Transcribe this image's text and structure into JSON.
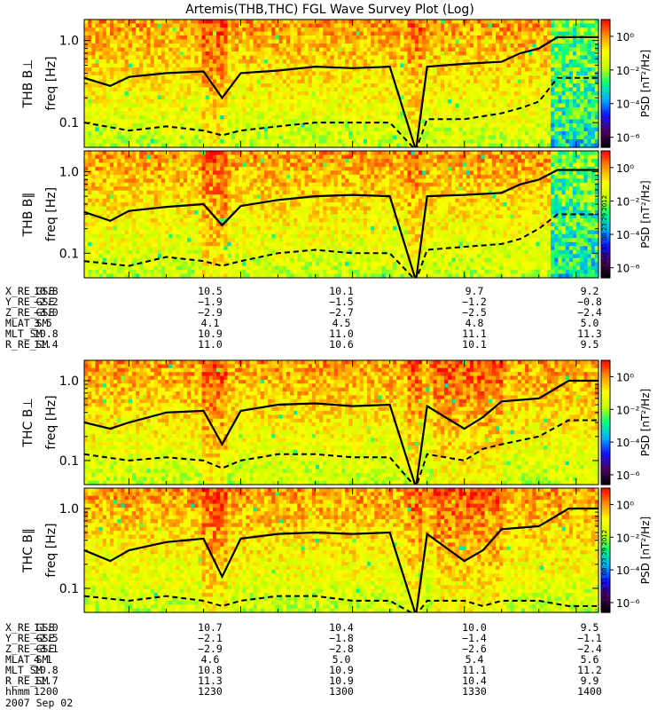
{
  "title": "Artemis(THB,THC) FGL Wave Survey Plot (Log)",
  "freq_label": "freq [Hz]",
  "y_ticks": [
    "1.0",
    "0.1"
  ],
  "colorbar": {
    "label": "PSD [nT²/Hz]",
    "ticks": [
      "10⁰",
      "10⁻²",
      "10⁻⁴",
      "10⁻⁶"
    ],
    "stamp": "Fri Aug 31 08:23:29 2012",
    "colors": [
      "#000000",
      "#500060",
      "#1010ff",
      "#00b0ff",
      "#00ff80",
      "#c8ff00",
      "#ffff00",
      "#ff9000",
      "#ff0000"
    ]
  },
  "date_label": "2007 Sep 02",
  "chart_data": [
    {
      "type": "heatmap",
      "panel": "THB B⊥",
      "ylabel": "THB B⊥",
      "yscale": "log",
      "ylim": [
        0.05,
        1.8
      ],
      "xlim": [
        "11:48",
        "14:06"
      ],
      "zlim": [
        1e-06,
        10
      ],
      "curves": [
        {
          "style": "solid",
          "x": [
            "11:48",
            "11:55",
            "12:00",
            "12:10",
            "12:20",
            "12:25",
            "12:30",
            "12:40",
            "12:50",
            "13:00",
            "13:10",
            "13:17",
            "13:20",
            "13:30",
            "13:40",
            "13:45",
            "13:50",
            "13:55",
            "14:06"
          ],
          "y": [
            0.35,
            0.28,
            0.36,
            0.4,
            0.42,
            0.2,
            0.4,
            0.43,
            0.48,
            0.46,
            0.48,
            0.0,
            0.48,
            0.52,
            0.55,
            0.7,
            0.8,
            1.1,
            1.1
          ]
        },
        {
          "style": "dashed",
          "x": [
            "11:48",
            "12:00",
            "12:10",
            "12:20",
            "12:25",
            "12:30",
            "12:40",
            "12:50",
            "13:00",
            "13:10",
            "13:17",
            "13:20",
            "13:30",
            "13:40",
            "13:45",
            "13:50",
            "13:55",
            "14:06"
          ],
          "y": [
            0.1,
            0.08,
            0.09,
            0.08,
            0.07,
            0.08,
            0.09,
            0.1,
            0.1,
            0.1,
            0.0,
            0.11,
            0.11,
            0.13,
            0.15,
            0.18,
            0.35,
            0.35
          ]
        }
      ]
    },
    {
      "type": "heatmap",
      "panel": "THB B∥",
      "ylabel": "THB B∥",
      "yscale": "log",
      "ylim": [
        0.05,
        1.8
      ],
      "xlim": [
        "11:48",
        "14:06"
      ],
      "zlim": [
        1e-06,
        10
      ],
      "curves": [
        {
          "style": "solid",
          "x": [
            "11:48",
            "11:55",
            "12:00",
            "12:10",
            "12:20",
            "12:25",
            "12:30",
            "12:40",
            "12:50",
            "13:00",
            "13:10",
            "13:17",
            "13:20",
            "13:30",
            "13:40",
            "13:45",
            "13:50",
            "13:55",
            "14:06"
          ],
          "y": [
            0.32,
            0.25,
            0.33,
            0.37,
            0.4,
            0.22,
            0.38,
            0.45,
            0.5,
            0.52,
            0.5,
            0.0,
            0.5,
            0.52,
            0.55,
            0.7,
            0.8,
            1.05,
            1.05
          ]
        },
        {
          "style": "dashed",
          "x": [
            "11:48",
            "12:00",
            "12:10",
            "12:20",
            "12:25",
            "12:30",
            "12:40",
            "12:50",
            "13:00",
            "13:10",
            "13:17",
            "13:20",
            "13:30",
            "13:40",
            "13:45",
            "13:50",
            "13:55",
            "14:06"
          ],
          "y": [
            0.08,
            0.07,
            0.09,
            0.08,
            0.07,
            0.08,
            0.1,
            0.11,
            0.1,
            0.1,
            0.0,
            0.11,
            0.12,
            0.13,
            0.15,
            0.2,
            0.3,
            0.3
          ]
        }
      ]
    },
    {
      "type": "heatmap",
      "panel": "THC B⊥",
      "ylabel": "THC B⊥",
      "yscale": "log",
      "ylim": [
        0.05,
        1.8
      ],
      "xlim": [
        "11:48",
        "14:06"
      ],
      "zlim": [
        1e-06,
        10
      ],
      "curves": [
        {
          "style": "solid",
          "x": [
            "11:48",
            "11:55",
            "12:00",
            "12:10",
            "12:20",
            "12:25",
            "12:30",
            "12:40",
            "12:50",
            "13:00",
            "13:10",
            "13:17",
            "13:20",
            "13:30",
            "13:35",
            "13:40",
            "13:50",
            "13:58",
            "14:06"
          ],
          "y": [
            0.3,
            0.25,
            0.3,
            0.4,
            0.42,
            0.16,
            0.42,
            0.5,
            0.52,
            0.48,
            0.5,
            0.0,
            0.48,
            0.25,
            0.35,
            0.55,
            0.6,
            1.0,
            1.0
          ]
        },
        {
          "style": "dashed",
          "x": [
            "11:48",
            "12:00",
            "12:10",
            "12:20",
            "12:25",
            "12:30",
            "12:40",
            "12:50",
            "13:00",
            "13:10",
            "13:17",
            "13:20",
            "13:30",
            "13:35",
            "13:40",
            "13:50",
            "13:58",
            "14:06"
          ],
          "y": [
            0.12,
            0.1,
            0.11,
            0.1,
            0.08,
            0.1,
            0.12,
            0.12,
            0.11,
            0.11,
            0.0,
            0.12,
            0.1,
            0.14,
            0.16,
            0.2,
            0.32,
            0.32
          ]
        }
      ]
    },
    {
      "type": "heatmap",
      "panel": "THC B∥",
      "ylabel": "THC B∥",
      "yscale": "log",
      "ylim": [
        0.05,
        1.8
      ],
      "xlim": [
        "11:48",
        "14:06"
      ],
      "zlim": [
        1e-06,
        10
      ],
      "curves": [
        {
          "style": "solid",
          "x": [
            "11:48",
            "11:55",
            "12:00",
            "12:10",
            "12:20",
            "12:25",
            "12:30",
            "12:40",
            "12:50",
            "13:00",
            "13:10",
            "13:17",
            "13:20",
            "13:30",
            "13:35",
            "13:40",
            "13:50",
            "13:58",
            "14:06"
          ],
          "y": [
            0.3,
            0.22,
            0.3,
            0.38,
            0.42,
            0.14,
            0.42,
            0.48,
            0.5,
            0.48,
            0.5,
            0.0,
            0.48,
            0.22,
            0.3,
            0.55,
            0.6,
            1.0,
            1.0
          ]
        },
        {
          "style": "dashed",
          "x": [
            "11:48",
            "12:00",
            "12:10",
            "12:20",
            "12:25",
            "12:30",
            "12:40",
            "12:50",
            "13:00",
            "13:10",
            "13:17",
            "13:20",
            "13:30",
            "13:35",
            "13:40",
            "13:50",
            "13:58",
            "14:06"
          ],
          "y": [
            0.08,
            0.07,
            0.08,
            0.07,
            0.06,
            0.07,
            0.08,
            0.08,
            0.07,
            0.07,
            0.0,
            0.07,
            0.07,
            0.06,
            0.07,
            0.07,
            0.06,
            0.06
          ]
        }
      ]
    }
  ],
  "ephemeris_top": {
    "rows": [
      {
        "name": "X_RE_GSE",
        "values": [
          "10.8",
          "10.5",
          "10.1",
          "9.7",
          "9.2"
        ]
      },
      {
        "name": "Y_RE_GSE",
        "values": [
          "-2.2",
          "-1.9",
          "-1.5",
          "-1.2",
          "-0.8"
        ]
      },
      {
        "name": "Z_RE_GSE",
        "values": [
          "-3.0",
          "-2.9",
          "-2.7",
          "-2.5",
          "-2.4"
        ]
      },
      {
        "name": "MLAT_SM",
        "values": [
          "3.5",
          "4.1",
          "4.5",
          "4.8",
          "5.0"
        ]
      },
      {
        "name": "MLT_SM",
        "values": [
          "10.8",
          "10.9",
          "11.0",
          "11.1",
          "11.3"
        ]
      },
      {
        "name": "R_RE_SM",
        "values": [
          "11.4",
          "11.0",
          "10.6",
          "10.1",
          "9.5"
        ]
      }
    ]
  },
  "ephemeris_bottom": {
    "rows": [
      {
        "name": "X_RE_GSE",
        "values": [
          "11.0",
          "10.7",
          "10.4",
          "10.0",
          "9.5"
        ]
      },
      {
        "name": "Y_RE_GSE",
        "values": [
          "-2.5",
          "-2.1",
          "-1.8",
          "-1.4",
          "-1.1"
        ]
      },
      {
        "name": "Z_RE_GSE",
        "values": [
          "-3.1",
          "-2.9",
          "-2.8",
          "-2.6",
          "-2.4"
        ]
      },
      {
        "name": "MLAT_SM",
        "values": [
          "4.1",
          "4.6",
          "5.0",
          "5.4",
          "5.6"
        ]
      },
      {
        "name": "MLT_SM",
        "values": [
          "10.8",
          "10.8",
          "10.9",
          "11.1",
          "11.2"
        ]
      },
      {
        "name": "R_RE_SM",
        "values": [
          "11.7",
          "11.3",
          "10.9",
          "10.4",
          "9.9"
        ]
      },
      {
        "name": "hhmm",
        "values": [
          "1200",
          "1230",
          "1300",
          "1330",
          "1400"
        ]
      }
    ]
  }
}
